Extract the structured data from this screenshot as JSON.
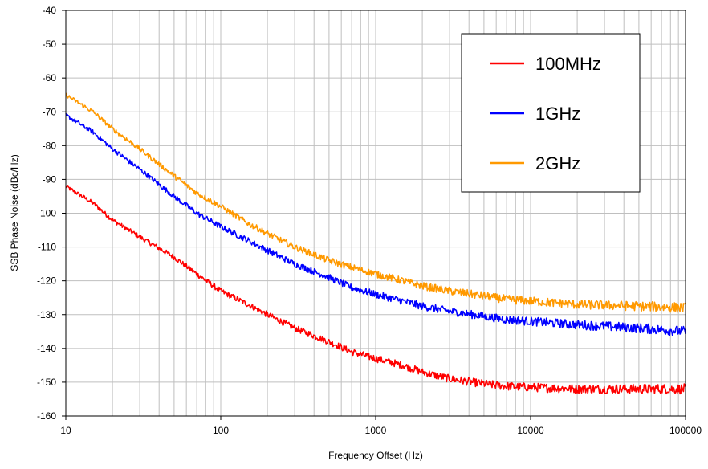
{
  "chart_data": {
    "type": "line",
    "xlabel": "Frequency Offset (Hz)",
    "ylabel": "SSB Phase Noise (dBc/Hz)",
    "x_scale": "log",
    "xlim": [
      10,
      100000
    ],
    "ylim": [
      -160,
      -40
    ],
    "x_ticks": [
      "10",
      "100",
      "1000",
      "10000",
      "100000"
    ],
    "y_ticks": [
      "-40",
      "-50",
      "-60",
      "-70",
      "-80",
      "-90",
      "-100",
      "-110",
      "-120",
      "-130",
      "-140",
      "-150",
      "-160"
    ],
    "grid": true,
    "legend_position": "top-right",
    "series": [
      {
        "name": "100MHz",
        "color": "#ff0000",
        "x": [
          10,
          15,
          20,
          30,
          50,
          70,
          100,
          150,
          200,
          300,
          500,
          700,
          1000,
          1500,
          2000,
          3000,
          5000,
          7000,
          10000,
          20000,
          50000,
          100000
        ],
        "y": [
          -92,
          -97,
          -102,
          -107,
          -113,
          -118,
          -123,
          -127,
          -130,
          -134,
          -138,
          -141,
          -143,
          -145,
          -147,
          -149,
          -150.5,
          -151.2,
          -151.5,
          -152,
          -152,
          -152
        ]
      },
      {
        "name": "1GHz",
        "color": "#0000ff",
        "x": [
          10,
          15,
          20,
          30,
          50,
          70,
          100,
          150,
          200,
          300,
          500,
          700,
          1000,
          1500,
          2000,
          3000,
          5000,
          7000,
          10000,
          20000,
          50000,
          100000
        ],
        "y": [
          -71,
          -76,
          -81,
          -87,
          -95,
          -100,
          -104,
          -108,
          -111,
          -115,
          -119,
          -122,
          -124,
          -126,
          -127.5,
          -129,
          -130.5,
          -131.5,
          -132,
          -133,
          -134,
          -135
        ]
      },
      {
        "name": "2GHz",
        "color": "#ff9900",
        "x": [
          10,
          15,
          20,
          30,
          50,
          70,
          100,
          150,
          200,
          300,
          500,
          700,
          1000,
          1500,
          2000,
          3000,
          5000,
          7000,
          10000,
          20000,
          50000,
          100000
        ],
        "y": [
          -65,
          -70,
          -75,
          -81,
          -89,
          -94,
          -98,
          -103,
          -106,
          -110,
          -114,
          -116,
          -118,
          -120,
          -121.5,
          -123,
          -124.5,
          -125.5,
          -126,
          -127,
          -127.5,
          -128
        ]
      }
    ]
  }
}
